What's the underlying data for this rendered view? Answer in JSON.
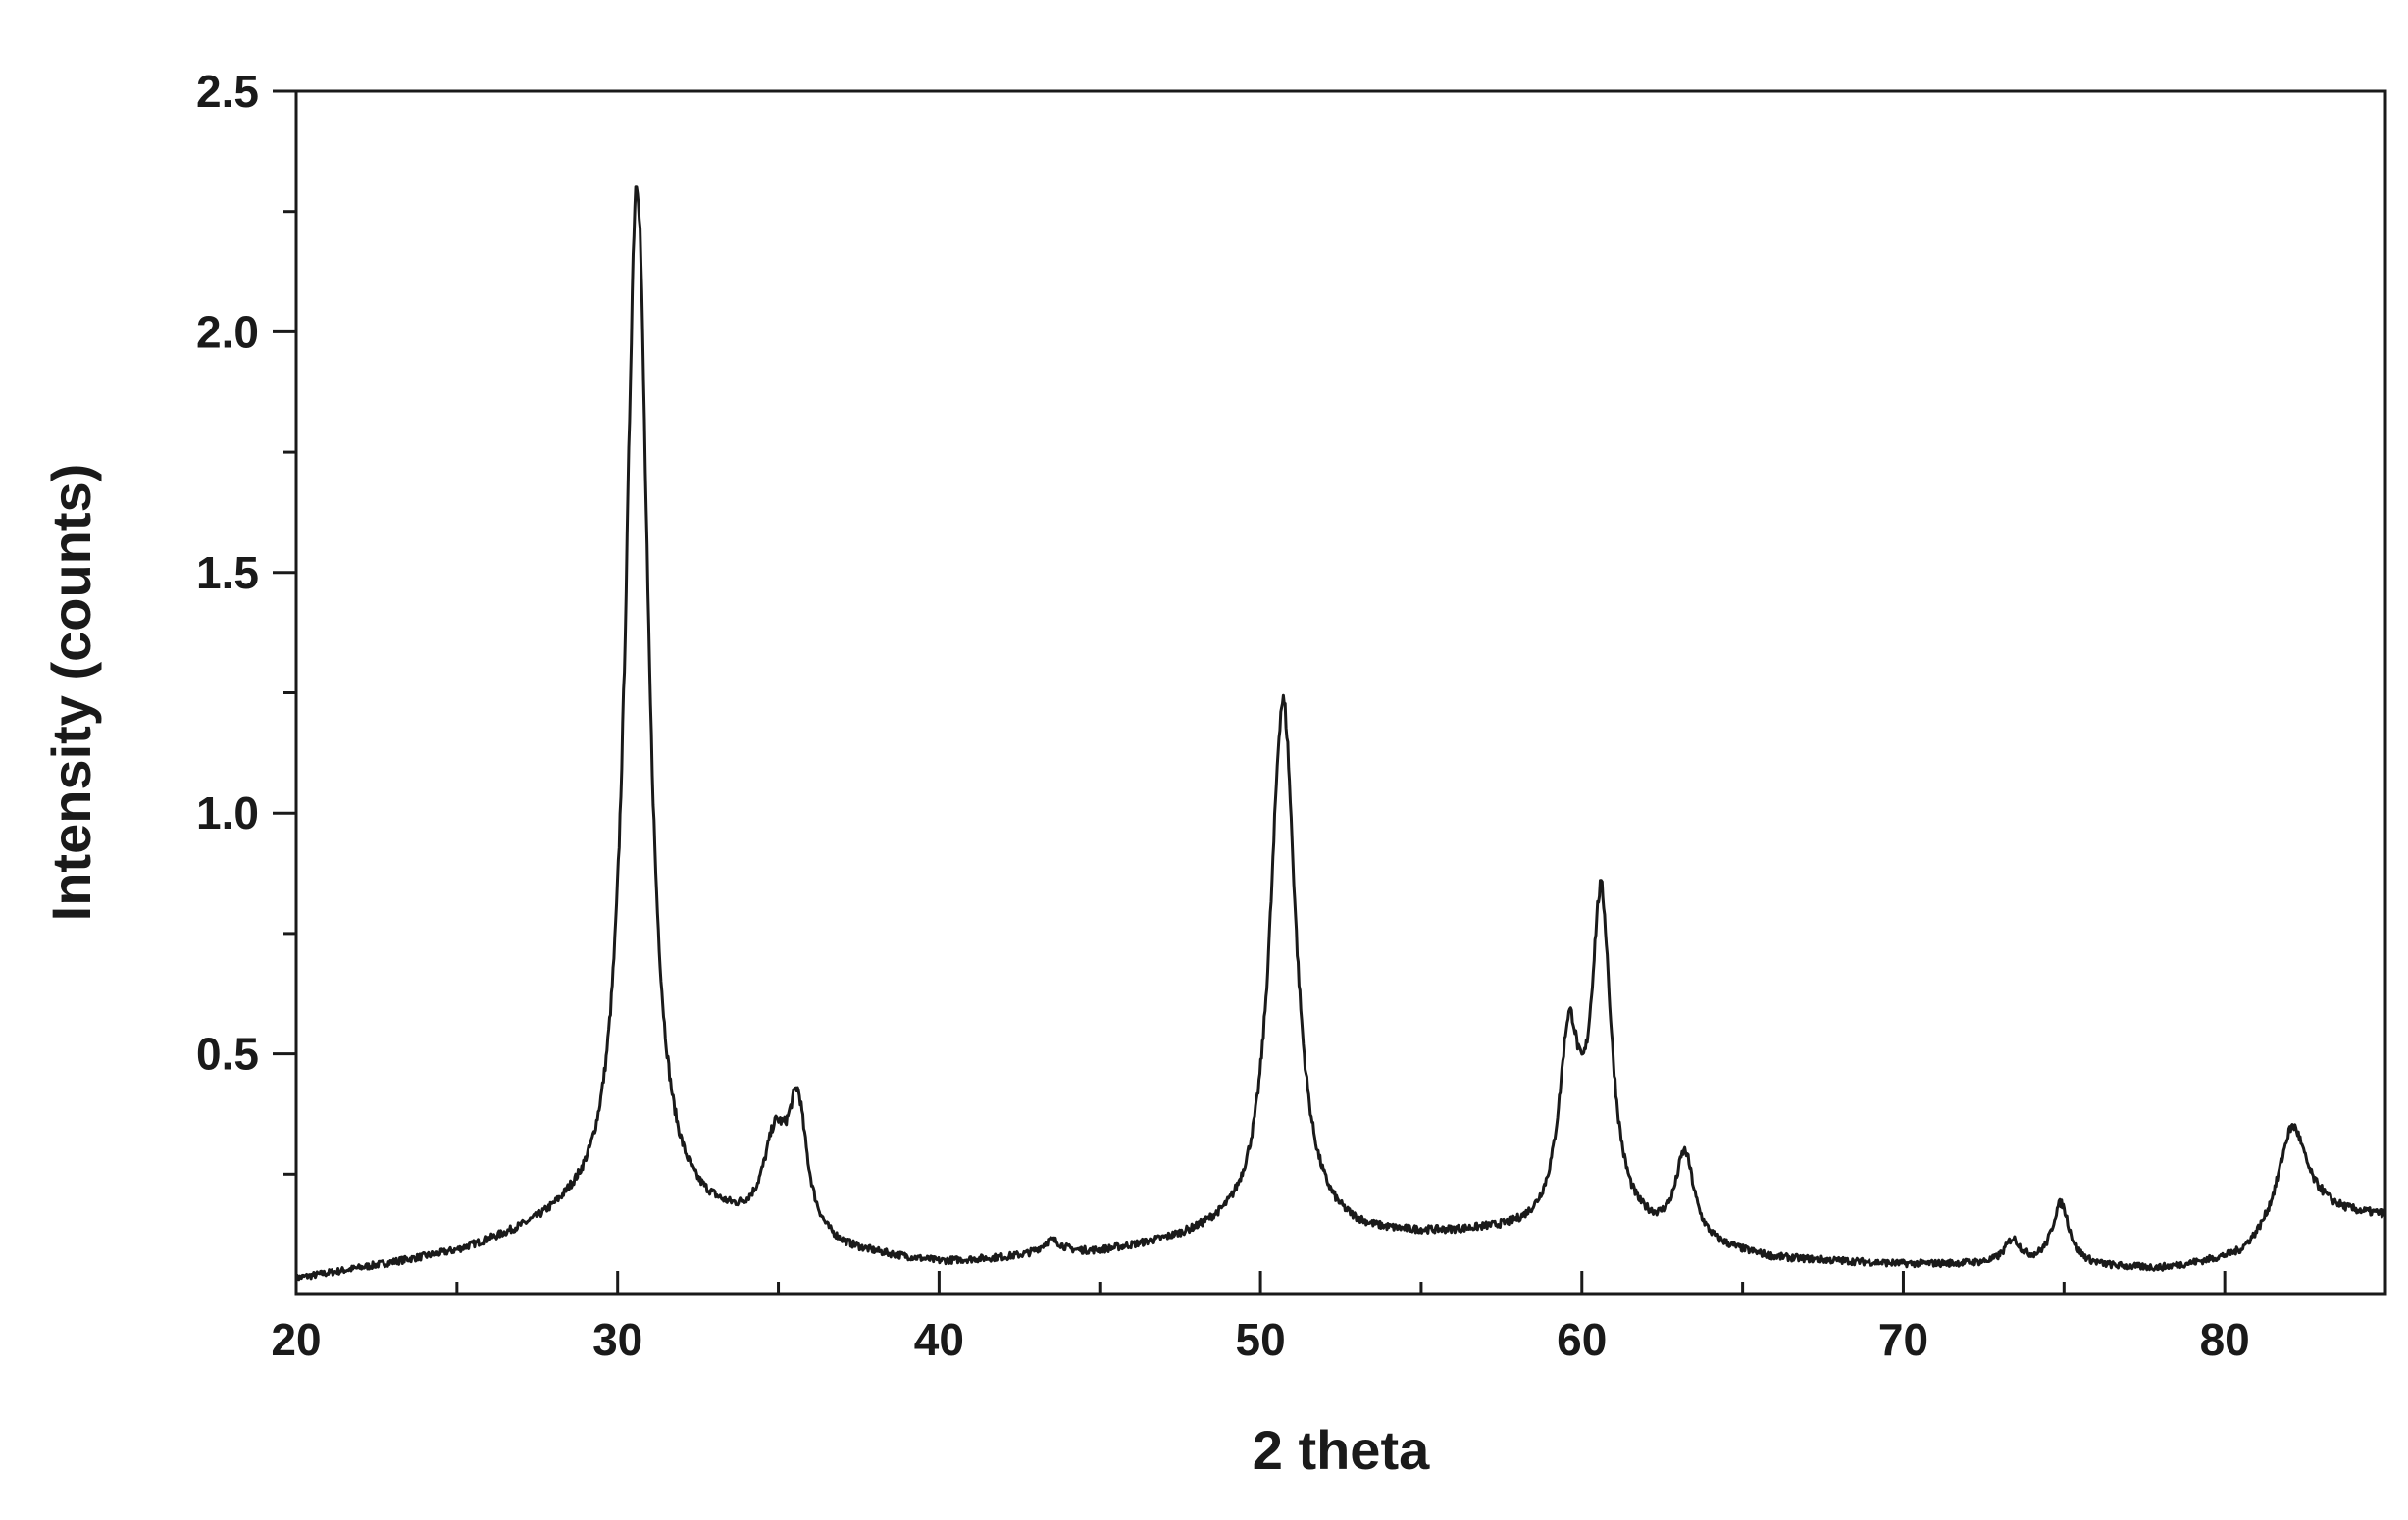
{
  "chart_data": {
    "type": "line",
    "title": "",
    "xlabel": "2 theta",
    "ylabel": "Intensity (counts)",
    "xlim": [
      20,
      85
    ],
    "ylim": [
      0,
      2.5
    ],
    "x_ticks": [
      "20",
      "30",
      "40",
      "50",
      "60",
      "70",
      "80"
    ],
    "x_tick_values": [
      20,
      30,
      40,
      50,
      60,
      70,
      80
    ],
    "x_minor_tick_values": [
      25,
      35,
      45,
      55,
      65,
      75,
      85
    ],
    "y_ticks": [
      "0.5",
      "1.0",
      "1.5",
      "2.0",
      "2.5"
    ],
    "y_tick_values": [
      0.5,
      1.0,
      1.5,
      2.0,
      2.5
    ],
    "grid": false,
    "legend": "none",
    "line_color": "#1a1a1a",
    "series": [
      {
        "baseline": [
          [
            20,
            0.03
          ],
          [
            25,
            0.08
          ],
          [
            28.5,
            0.14
          ],
          [
            33,
            0.13
          ],
          [
            37,
            0.08
          ],
          [
            40,
            0.06
          ],
          [
            45,
            0.08
          ],
          [
            48.5,
            0.11
          ],
          [
            53,
            0.11
          ],
          [
            57,
            0.12
          ],
          [
            62,
            0.11
          ],
          [
            66,
            0.07
          ],
          [
            70,
            0.06
          ],
          [
            72,
            0.06
          ],
          [
            78,
            0.05
          ],
          [
            80.5,
            0.07
          ],
          [
            83,
            0.16
          ],
          [
            85,
            0.16
          ]
        ],
        "peaks": [
          {
            "x": 30.6,
            "height": 2.18,
            "width": 0.42
          },
          {
            "x": 34.9,
            "height": 0.18,
            "width": 0.45
          },
          {
            "x": 35.6,
            "height": 0.26,
            "width": 0.35
          },
          {
            "x": 43.5,
            "height": 0.03,
            "width": 0.4
          },
          {
            "x": 50.7,
            "height": 1.12,
            "width": 0.48
          },
          {
            "x": 59.6,
            "height": 0.38,
            "width": 0.38
          },
          {
            "x": 60.6,
            "height": 0.68,
            "width": 0.38
          },
          {
            "x": 63.2,
            "height": 0.18,
            "width": 0.35
          },
          {
            "x": 73.4,
            "height": 0.05,
            "width": 0.3
          },
          {
            "x": 74.9,
            "height": 0.13,
            "width": 0.33
          },
          {
            "x": 82.1,
            "height": 0.22,
            "width": 0.55
          }
        ]
      }
    ]
  }
}
